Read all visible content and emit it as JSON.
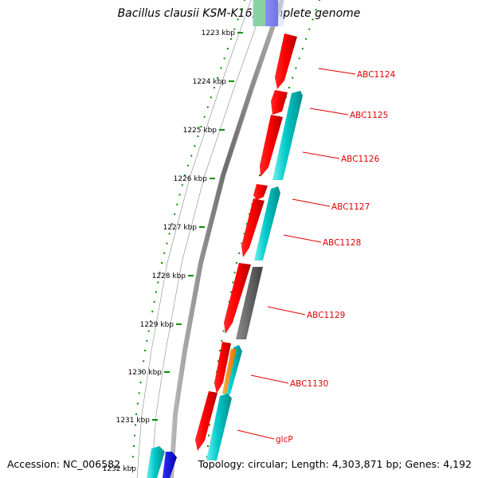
{
  "title": "Bacillus clausii KSM-K16, complete genome",
  "footer": {
    "accession": "Accession: NC_006582",
    "summary": "Topology: circular; Length: 4,303,871 bp; Genes: 4,192"
  },
  "colors": {
    "background": "#ffffff",
    "backbone": "#7a7a7a",
    "tick": "#009000",
    "label": "#e00000",
    "gene_red": "#ff0000",
    "gene_cyan": "#00c8c8",
    "gene_gray": "#666666",
    "gene_orange": "#ff8c00",
    "gene_blue": "#0000ee",
    "gene_green": "#33cc33"
  },
  "kbp_labels": [
    "1223 kbp",
    "1224 kbp",
    "1225 kbp",
    "1226 kbp",
    "1227 kbp",
    "1228 kbp",
    "1229 kbp",
    "1230 kbp",
    "1231 kbp",
    "1232 kbp"
  ],
  "gene_labels": [
    "ABC1124",
    "ABC1125",
    "ABC1126",
    "ABC1127",
    "ABC1128",
    "ABC1129",
    "ABC1130",
    "glcP"
  ]
}
